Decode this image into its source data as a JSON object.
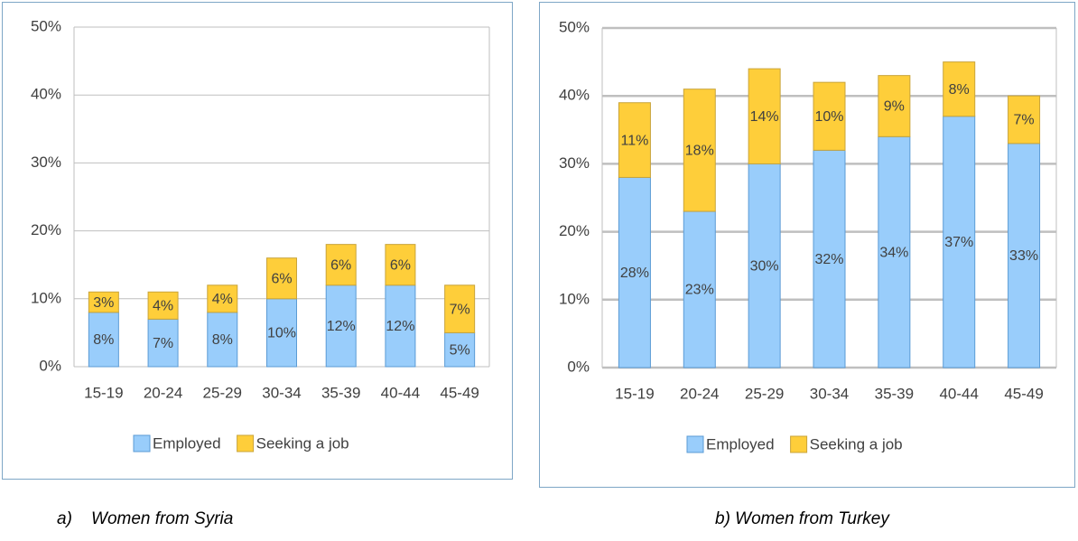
{
  "chart_data": [
    {
      "type": "bar",
      "stacked": true,
      "caption": "a)    Women from Syria",
      "categories": [
        "15-19",
        "20-24",
        "25-29",
        "30-34",
        "35-39",
        "40-44",
        "45-49"
      ],
      "series": [
        {
          "name": "Employed",
          "color": "#99cdfb",
          "values": [
            8,
            7,
            8,
            10,
            12,
            12,
            5
          ],
          "value_labels": [
            "8%",
            "7%",
            "8%",
            "10%",
            "12%",
            "12%",
            "5%"
          ]
        },
        {
          "name": "Seeking a job",
          "color": "#fece3a",
          "values": [
            3,
            4,
            4,
            6,
            6,
            6,
            7
          ],
          "value_labels": [
            "3%",
            "4%",
            "4%",
            "6%",
            "6%",
            "6%",
            "7%"
          ]
        }
      ],
      "ylim": [
        0,
        50
      ],
      "yticks": [
        {
          "value": 0,
          "label": "0%"
        },
        {
          "value": 10,
          "label": "10%"
        },
        {
          "value": 20,
          "label": "20%"
        },
        {
          "value": 30,
          "label": "30%"
        },
        {
          "value": 40,
          "label": "40%"
        },
        {
          "value": 50,
          "label": "50%"
        }
      ],
      "grid": true,
      "legend": "bottom"
    },
    {
      "type": "bar",
      "stacked": true,
      "caption": "b) Women from Turkey",
      "categories": [
        "15-19",
        "20-24",
        "25-29",
        "30-34",
        "35-39",
        "40-44",
        "45-49"
      ],
      "series": [
        {
          "name": "Employed",
          "color": "#99cdfb",
          "values": [
            28,
            23,
            30,
            32,
            34,
            37,
            33
          ],
          "value_labels": [
            "28%",
            "23%",
            "30%",
            "32%",
            "34%",
            "37%",
            "33%"
          ]
        },
        {
          "name": "Seeking a job",
          "color": "#fece3a",
          "values": [
            11,
            18,
            14,
            10,
            9,
            8,
            7
          ],
          "value_labels": [
            "11%",
            "18%",
            "14%",
            "10%",
            "9%",
            "8%",
            "7%"
          ]
        }
      ],
      "ylim": [
        0,
        50
      ],
      "yticks": [
        {
          "value": 0,
          "label": "0%"
        },
        {
          "value": 10,
          "label": "10%"
        },
        {
          "value": 20,
          "label": "20%"
        },
        {
          "value": 30,
          "label": "30%"
        },
        {
          "value": 40,
          "label": "40%"
        },
        {
          "value": 50,
          "label": "50%"
        }
      ],
      "grid": true,
      "legend": "bottom"
    }
  ]
}
